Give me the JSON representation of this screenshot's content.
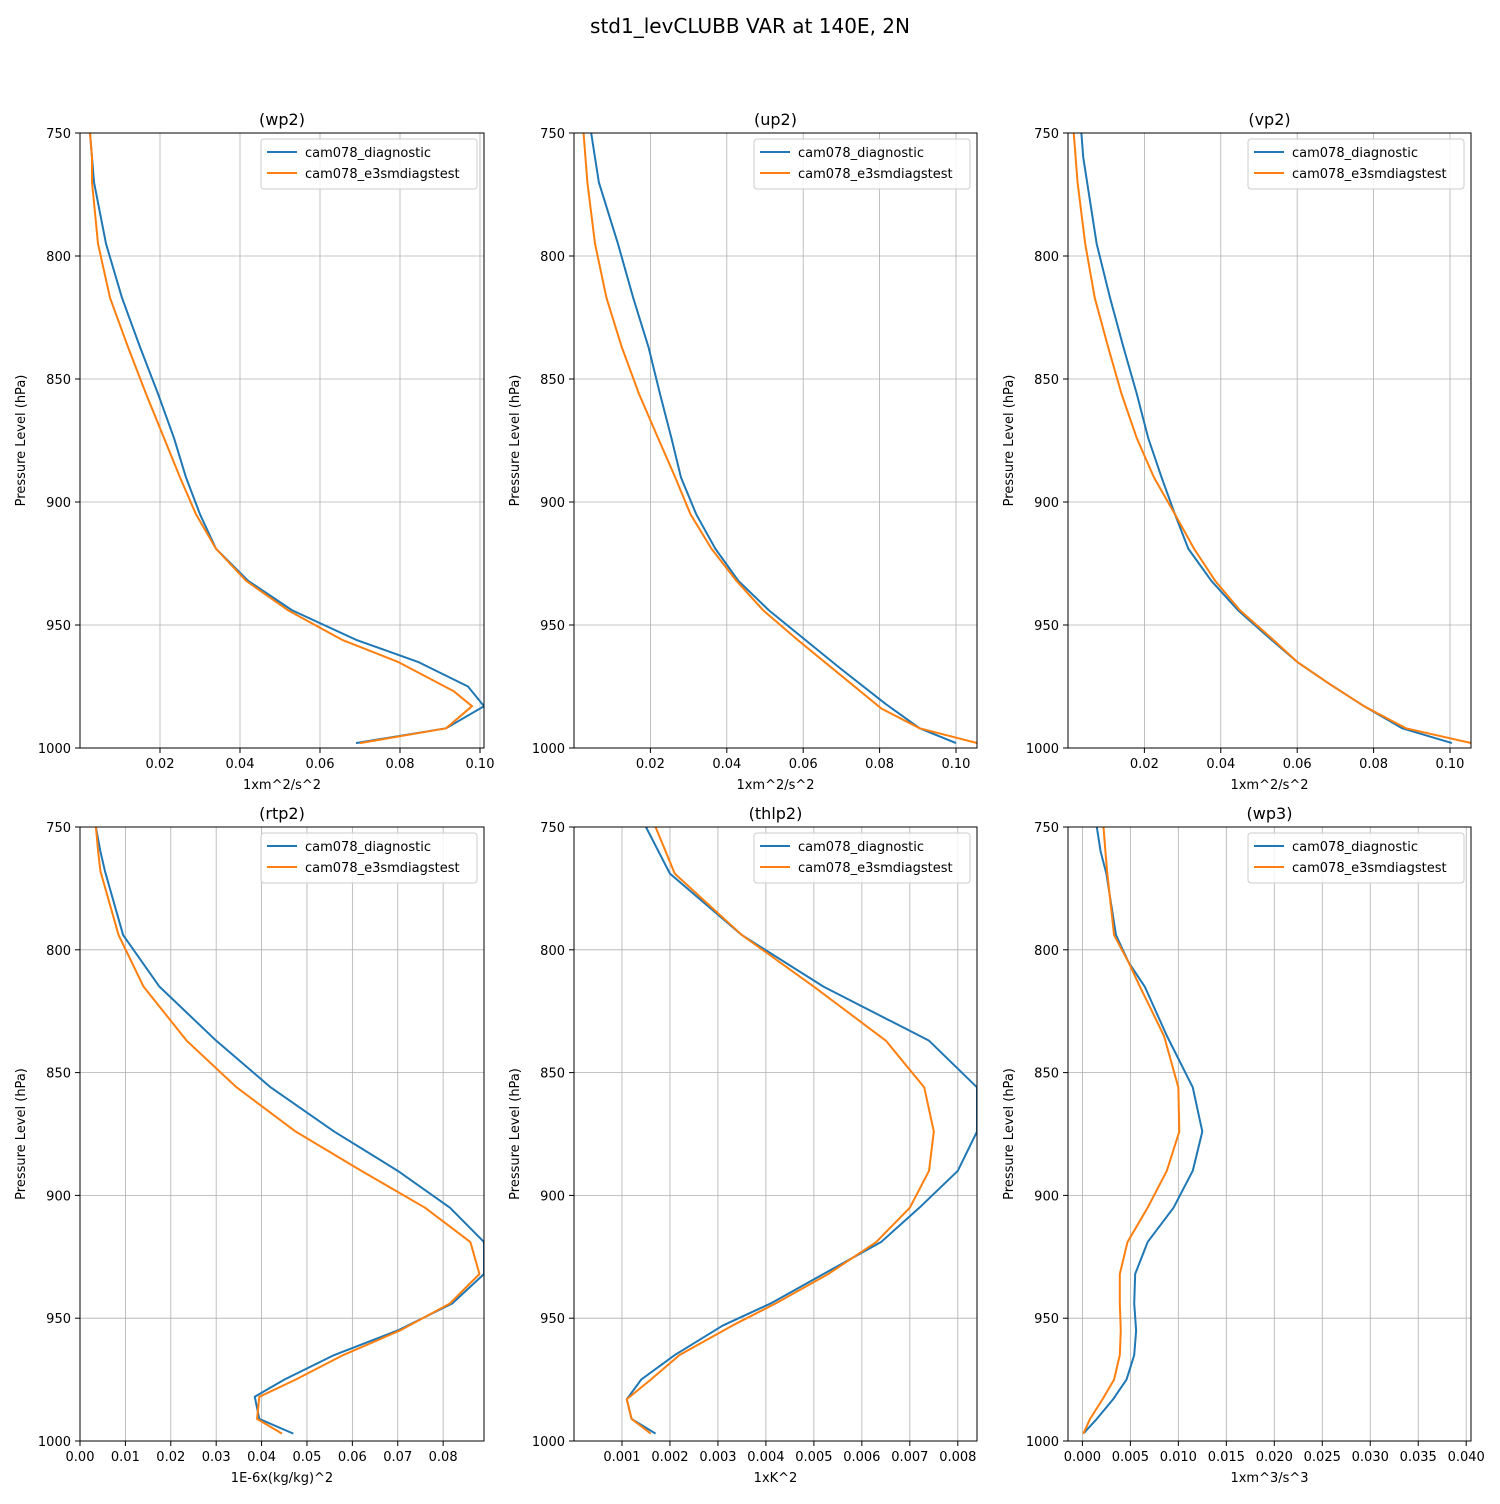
{
  "figure_title": "std1_levCLUBB VAR at 140E, 2N",
  "colors": {
    "series_1": "#1f77b4",
    "series_2": "#ff7f0e",
    "grid": "#b0b0b0"
  },
  "chart_data": [
    {
      "type": "line",
      "title": "(wp2)",
      "xlabel": "1xm^2/s^2",
      "ylabel": "Pressure Level (hPa)",
      "xlim": [
        0.0,
        0.101
      ],
      "ylim": [
        1000,
        750
      ],
      "xticks": [
        0.02,
        0.04,
        0.06,
        0.08,
        0.1
      ],
      "xtick_labels": [
        "0.02",
        "0.04",
        "0.06",
        "0.08",
        "0.10"
      ],
      "yticks": [
        750,
        800,
        850,
        900,
        950,
        1000
      ],
      "grid": true,
      "legend_position": "top-right",
      "series": [
        {
          "name": "cam078_diagnostic",
          "x": [
            0.0025,
            0.003,
            0.0035,
            0.0065,
            0.0105,
            0.015,
            0.0195,
            0.0235,
            0.0265,
            0.03,
            0.034,
            0.042,
            0.053,
            0.069,
            0.0845,
            0.097,
            0.101,
            0.0915,
            0.069
          ],
          "y": [
            750,
            760,
            770,
            795,
            817,
            837,
            856,
            874,
            890,
            905,
            919,
            932,
            944,
            956,
            965,
            975,
            983,
            992,
            998
          ]
        },
        {
          "name": "cam078_e3smdiagstest",
          "x": [
            0.0025,
            0.003,
            0.003,
            0.0045,
            0.0075,
            0.012,
            0.0165,
            0.021,
            0.025,
            0.029,
            0.034,
            0.0415,
            0.052,
            0.0655,
            0.0795,
            0.0935,
            0.098,
            0.0915,
            0.07
          ],
          "y": [
            750,
            760,
            770,
            795,
            817,
            837,
            856,
            874,
            890,
            905,
            919,
            932,
            944,
            956,
            965,
            977,
            983,
            992,
            998
          ]
        }
      ]
    },
    {
      "type": "line",
      "title": "(up2)",
      "xlabel": "1xm^2/s^2",
      "ylabel": "Pressure Level (hPa)",
      "xlim": [
        0.0,
        0.1055
      ],
      "ylim": [
        1000,
        750
      ],
      "xticks": [
        0.02,
        0.04,
        0.06,
        0.08,
        0.1
      ],
      "xtick_labels": [
        "0.02",
        "0.04",
        "0.06",
        "0.08",
        "0.10"
      ],
      "yticks": [
        750,
        800,
        850,
        900,
        950,
        1000
      ],
      "grid": true,
      "legend_position": "top-right",
      "series": [
        {
          "name": "cam078_diagnostic",
          "x": [
            0.0045,
            0.0055,
            0.0065,
            0.0115,
            0.0155,
            0.0195,
            0.0225,
            0.0255,
            0.028,
            0.032,
            0.037,
            0.043,
            0.051,
            0.0605,
            0.07,
            0.0815,
            0.0905,
            0.1
          ],
          "y": [
            750,
            760,
            770,
            795,
            817,
            837,
            856,
            874,
            890,
            905,
            919,
            932,
            944,
            956,
            968,
            982,
            992,
            998
          ]
        },
        {
          "name": "cam078_e3smdiagstest",
          "x": [
            0.0025,
            0.003,
            0.0035,
            0.0055,
            0.0085,
            0.0125,
            0.017,
            0.022,
            0.0265,
            0.0305,
            0.036,
            0.0425,
            0.0495,
            0.0585,
            0.0695,
            0.0805,
            0.0905,
            0.1055
          ],
          "y": [
            750,
            760,
            770,
            795,
            817,
            837,
            856,
            874,
            890,
            905,
            919,
            932,
            944,
            956,
            970,
            984,
            992,
            998
          ]
        }
      ]
    },
    {
      "type": "line",
      "title": "(vp2)",
      "xlabel": "1xm^2/s^2",
      "ylabel": "Pressure Level (hPa)",
      "xlim": [
        0.0,
        0.1055
      ],
      "ylim": [
        1000,
        750
      ],
      "xticks": [
        0.02,
        0.04,
        0.06,
        0.08,
        0.1
      ],
      "xtick_labels": [
        "0.02",
        "0.04",
        "0.06",
        "0.08",
        "0.10"
      ],
      "yticks": [
        750,
        800,
        850,
        900,
        950,
        1000
      ],
      "grid": true,
      "legend_position": "top-right",
      "series": [
        {
          "name": "cam078_diagnostic",
          "x": [
            0.0035,
            0.004,
            0.005,
            0.0075,
            0.011,
            0.0145,
            0.018,
            0.021,
            0.0245,
            0.028,
            0.0315,
            0.0375,
            0.0445,
            0.0525,
            0.06,
            0.0685,
            0.0775,
            0.0875,
            0.1005
          ],
          "y": [
            750,
            760,
            770,
            795,
            817,
            837,
            856,
            874,
            890,
            905,
            919,
            932,
            944,
            955,
            965,
            974,
            983,
            992,
            998
          ]
        },
        {
          "name": "cam078_e3smdiagstest",
          "x": [
            0.0015,
            0.002,
            0.0025,
            0.0045,
            0.007,
            0.0105,
            0.014,
            0.018,
            0.0225,
            0.028,
            0.033,
            0.0385,
            0.045,
            0.053,
            0.06,
            0.0685,
            0.0775,
            0.0885,
            0.1055
          ],
          "y": [
            750,
            760,
            770,
            795,
            817,
            837,
            856,
            874,
            890,
            905,
            919,
            932,
            944,
            955,
            965,
            974,
            983,
            992,
            998
          ]
        }
      ]
    },
    {
      "type": "line",
      "title": "(rtp2)",
      "xlabel": "1E-6x(kg/kg)^2",
      "ylabel": "Pressure Level (hPa)",
      "xlim": [
        0.0,
        0.089
      ],
      "ylim": [
        1000,
        750
      ],
      "xticks": [
        0.0,
        0.01,
        0.02,
        0.03,
        0.04,
        0.05,
        0.06,
        0.07,
        0.08
      ],
      "xtick_labels": [
        "0.00",
        "0.01",
        "0.02",
        "0.03",
        "0.04",
        "0.05",
        "0.06",
        "0.07",
        "0.08"
      ],
      "yticks": [
        750,
        800,
        850,
        900,
        950,
        1000
      ],
      "grid": true,
      "legend_position": "top-right",
      "series": [
        {
          "name": "cam078_diagnostic",
          "x": [
            0.0035,
            0.0045,
            0.0055,
            0.0095,
            0.0175,
            0.03,
            0.042,
            0.056,
            0.07,
            0.0815,
            0.089,
            0.089,
            0.082,
            0.07,
            0.056,
            0.045,
            0.0385,
            0.0395,
            0.047
          ],
          "y": [
            750,
            760,
            768,
            794,
            815,
            837,
            856,
            874,
            890,
            905,
            919,
            932,
            944,
            955,
            965,
            975,
            982,
            991,
            997
          ]
        },
        {
          "name": "cam078_e3smdiagstest",
          "x": [
            0.0035,
            0.004,
            0.0045,
            0.0085,
            0.014,
            0.0235,
            0.0345,
            0.0475,
            0.062,
            0.076,
            0.086,
            0.088,
            0.0815,
            0.0705,
            0.058,
            0.0475,
            0.0395,
            0.039,
            0.0445
          ],
          "y": [
            750,
            760,
            768,
            794,
            815,
            837,
            856,
            874,
            890,
            905,
            919,
            932,
            944,
            955,
            965,
            975,
            982,
            991,
            997
          ]
        }
      ]
    },
    {
      "type": "line",
      "title": "(thlp2)",
      "xlabel": "1xK^2",
      "ylabel": "Pressure Level (hPa)",
      "xlim": [
        0.0,
        0.0084
      ],
      "ylim": [
        1000,
        750
      ],
      "xticks": [
        0.001,
        0.002,
        0.003,
        0.004,
        0.005,
        0.006,
        0.007,
        0.008
      ],
      "xtick_labels": [
        "0.001",
        "0.002",
        "0.003",
        "0.004",
        "0.005",
        "0.006",
        "0.007",
        "0.008"
      ],
      "yticks": [
        750,
        800,
        850,
        900,
        950,
        1000
      ],
      "grid": true,
      "legend_position": "top-right",
      "series": [
        {
          "name": "cam078_diagnostic",
          "x": [
            0.0015,
            0.002,
            0.0035,
            0.0052,
            0.0074,
            0.0084,
            0.0084,
            0.008,
            0.0072,
            0.0064,
            0.0052,
            0.0041,
            0.0031,
            0.0021,
            0.0014,
            0.0011,
            0.0012,
            0.0017
          ],
          "y": [
            750,
            769,
            794,
            815,
            837,
            856,
            874,
            890,
            905,
            919,
            932,
            944,
            953,
            965,
            975,
            983,
            991,
            997
          ]
        },
        {
          "name": "cam078_e3smdiagstest",
          "x": [
            0.0017,
            0.0021,
            0.0035,
            0.005,
            0.0065,
            0.0073,
            0.0075,
            0.0074,
            0.007,
            0.0063,
            0.0053,
            0.0042,
            0.0033,
            0.0022,
            0.0016,
            0.0011,
            0.0012,
            0.0016
          ],
          "y": [
            750,
            769,
            794,
            815,
            837,
            856,
            874,
            890,
            905,
            919,
            932,
            944,
            953,
            965,
            975,
            983,
            991,
            997
          ]
        }
      ]
    },
    {
      "type": "line",
      "title": "(wp3)",
      "xlabel": "1xm^3/s^3",
      "ylabel": "Pressure Level (hPa)",
      "xlim": [
        -0.0015,
        0.0405
      ],
      "ylim": [
        1000,
        750
      ],
      "xticks": [
        0.0,
        0.005,
        0.01,
        0.015,
        0.02,
        0.025,
        0.03,
        0.035,
        0.04
      ],
      "xtick_labels": [
        "0.000",
        "0.005",
        "0.010",
        "0.015",
        "0.020",
        "0.025",
        "0.030",
        "0.035",
        "0.040"
      ],
      "yticks": [
        750,
        800,
        850,
        900,
        950,
        1000
      ],
      "grid": true,
      "legend_position": "top-right",
      "series": [
        {
          "name": "cam078_diagnostic",
          "x": [
            0.0015,
            0.0019,
            0.0025,
            0.0035,
            0.0048,
            0.0065,
            0.0088,
            0.0115,
            0.0125,
            0.0115,
            0.0095,
            0.0068,
            0.0055,
            0.0054,
            0.0056,
            0.0054,
            0.0046,
            0.0032,
            0.0015,
            0.0001
          ],
          "y": [
            750,
            760,
            769,
            794,
            805,
            815,
            835,
            856,
            874,
            890,
            905,
            919,
            932,
            944,
            955,
            965,
            975,
            983,
            991,
            997
          ]
        },
        {
          "name": "cam078_e3smdiagstest",
          "x": [
            0.0022,
            0.0024,
            0.0026,
            0.0033,
            0.0048,
            0.006,
            0.0085,
            0.01,
            0.0101,
            0.0088,
            0.0068,
            0.0047,
            0.0039,
            0.0039,
            0.004,
            0.0039,
            0.0033,
            0.0021,
            0.0008,
            0.0001
          ],
          "y": [
            750,
            760,
            769,
            794,
            805,
            815,
            835,
            856,
            874,
            890,
            905,
            919,
            932,
            944,
            955,
            965,
            975,
            983,
            991,
            997
          ]
        }
      ]
    }
  ]
}
